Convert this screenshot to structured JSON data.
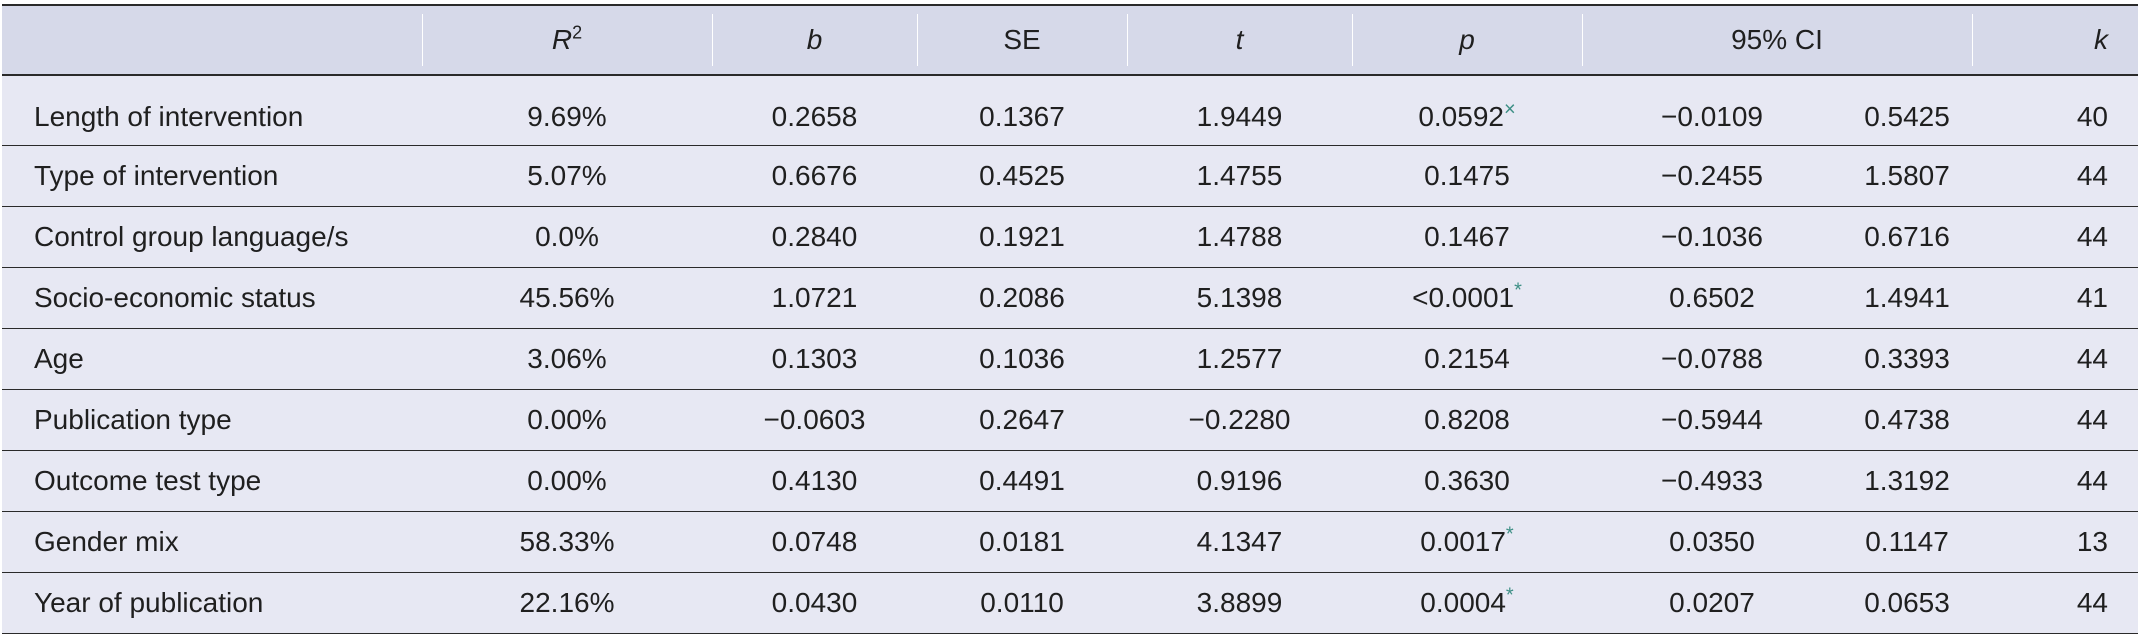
{
  "headers": {
    "r2_base": "R",
    "r2_sup": "2",
    "b": "b",
    "se": "SE",
    "t": "t",
    "p": "p",
    "ci": "95% CI",
    "k": "k"
  },
  "rows": [
    {
      "label": "Length of intervention",
      "r2": "9.69%",
      "b": "0.2658",
      "se": "0.1367",
      "t": "1.9449",
      "p": "0.0592",
      "p_mark": "×",
      "ci_low": "−0.0109",
      "ci_high": "0.5425",
      "k": "40"
    },
    {
      "label": "Type of intervention",
      "r2": "5.07%",
      "b": "0.6676",
      "se": "0.4525",
      "t": "1.4755",
      "p": "0.1475",
      "p_mark": "",
      "ci_low": "−0.2455",
      "ci_high": "1.5807",
      "k": "44"
    },
    {
      "label": "Control group language/s",
      "r2": "0.0%",
      "b": "0.2840",
      "se": "0.1921",
      "t": "1.4788",
      "p": "0.1467",
      "p_mark": "",
      "ci_low": "−0.1036",
      "ci_high": "0.6716",
      "k": "44"
    },
    {
      "label": "Socio-economic status",
      "r2": "45.56%",
      "b": "1.0721",
      "se": "0.2086",
      "t": "5.1398",
      "p": "<0.0001",
      "p_mark": "*",
      "ci_low": "0.6502",
      "ci_high": "1.4941",
      "k": "41"
    },
    {
      "label": "Age",
      "r2": "3.06%",
      "b": "0.1303",
      "se": "0.1036",
      "t": "1.2577",
      "p": "0.2154",
      "p_mark": "",
      "ci_low": "−0.0788",
      "ci_high": "0.3393",
      "k": "44"
    },
    {
      "label": "Publication type",
      "r2": "0.00%",
      "b": "−0.0603",
      "se": "0.2647",
      "t": "−0.2280",
      "p": "0.8208",
      "p_mark": "",
      "ci_low": "−0.5944",
      "ci_high": "0.4738",
      "k": "44"
    },
    {
      "label": "Outcome test type",
      "r2": "0.00%",
      "b": "0.4130",
      "se": "0.4491",
      "t": "0.9196",
      "p": "0.3630",
      "p_mark": "",
      "ci_low": "−0.4933",
      "ci_high": "1.3192",
      "k": "44"
    },
    {
      "label": "Gender mix",
      "r2": "58.33%",
      "b": "0.0748",
      "se": "0.0181",
      "t": "4.1347",
      "p": "0.0017",
      "p_mark": "*",
      "ci_low": "0.0350",
      "ci_high": "0.1147",
      "k": "13"
    },
    {
      "label": "Year of publication",
      "r2": "22.16%",
      "b": "0.0430",
      "se": "0.0110",
      "t": "3.8899",
      "p": "0.0004",
      "p_mark": "*",
      "ci_low": "0.0207",
      "ci_high": "0.0653",
      "k": "44"
    }
  ]
}
